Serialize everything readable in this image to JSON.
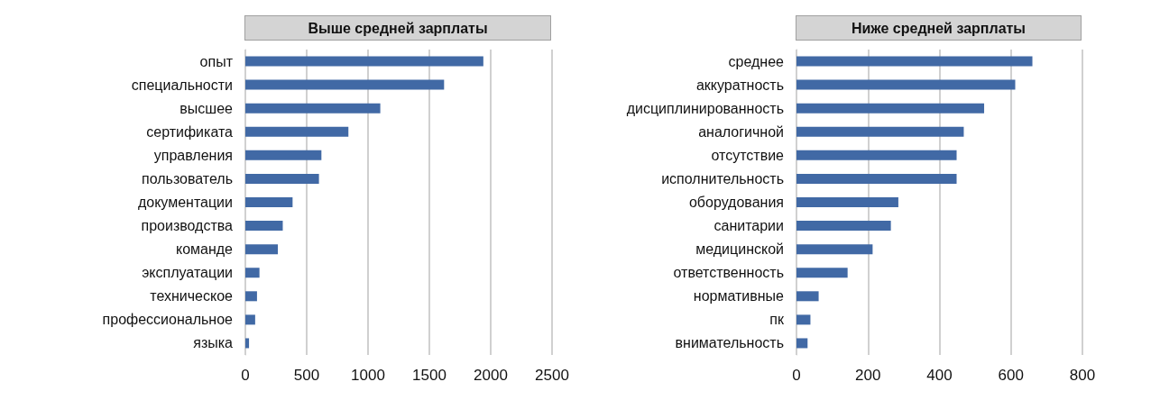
{
  "chart_data": [
    {
      "type": "bar",
      "orientation": "horizontal",
      "title": "Выше средней зарплаты",
      "categories": [
        "опыт",
        "специальности",
        "высшее",
        "сертификата",
        "управления",
        "пользователь",
        "документации",
        "производства",
        "команде",
        "эксплуатации",
        "техническое",
        "профессиональное",
        "языка"
      ],
      "values": [
        1940,
        1620,
        1100,
        840,
        620,
        600,
        385,
        305,
        265,
        115,
        95,
        80,
        30
      ],
      "color": "#4169a5",
      "xlim": [
        0,
        2500
      ],
      "xticks": [
        0,
        500,
        1000,
        1500,
        2000,
        2500
      ],
      "grid": "x"
    },
    {
      "type": "bar",
      "orientation": "horizontal",
      "title": "Ниже средней зарплаты",
      "categories": [
        "среднее",
        "аккуратность",
        "дисциплинированность",
        "аналогичной",
        "отсутствие",
        "исполнительность",
        "оборудования",
        "санитарии",
        "медицинской",
        "ответственность",
        "нормативные",
        "пк",
        "внимательность"
      ],
      "values": [
        660,
        612,
        525,
        468,
        448,
        448,
        285,
        264,
        213,
        143,
        62,
        39,
        31
      ],
      "color": "#4169a5",
      "xlim": [
        0,
        800
      ],
      "xticks": [
        0,
        200,
        400,
        600,
        800
      ],
      "grid": "x"
    }
  ]
}
